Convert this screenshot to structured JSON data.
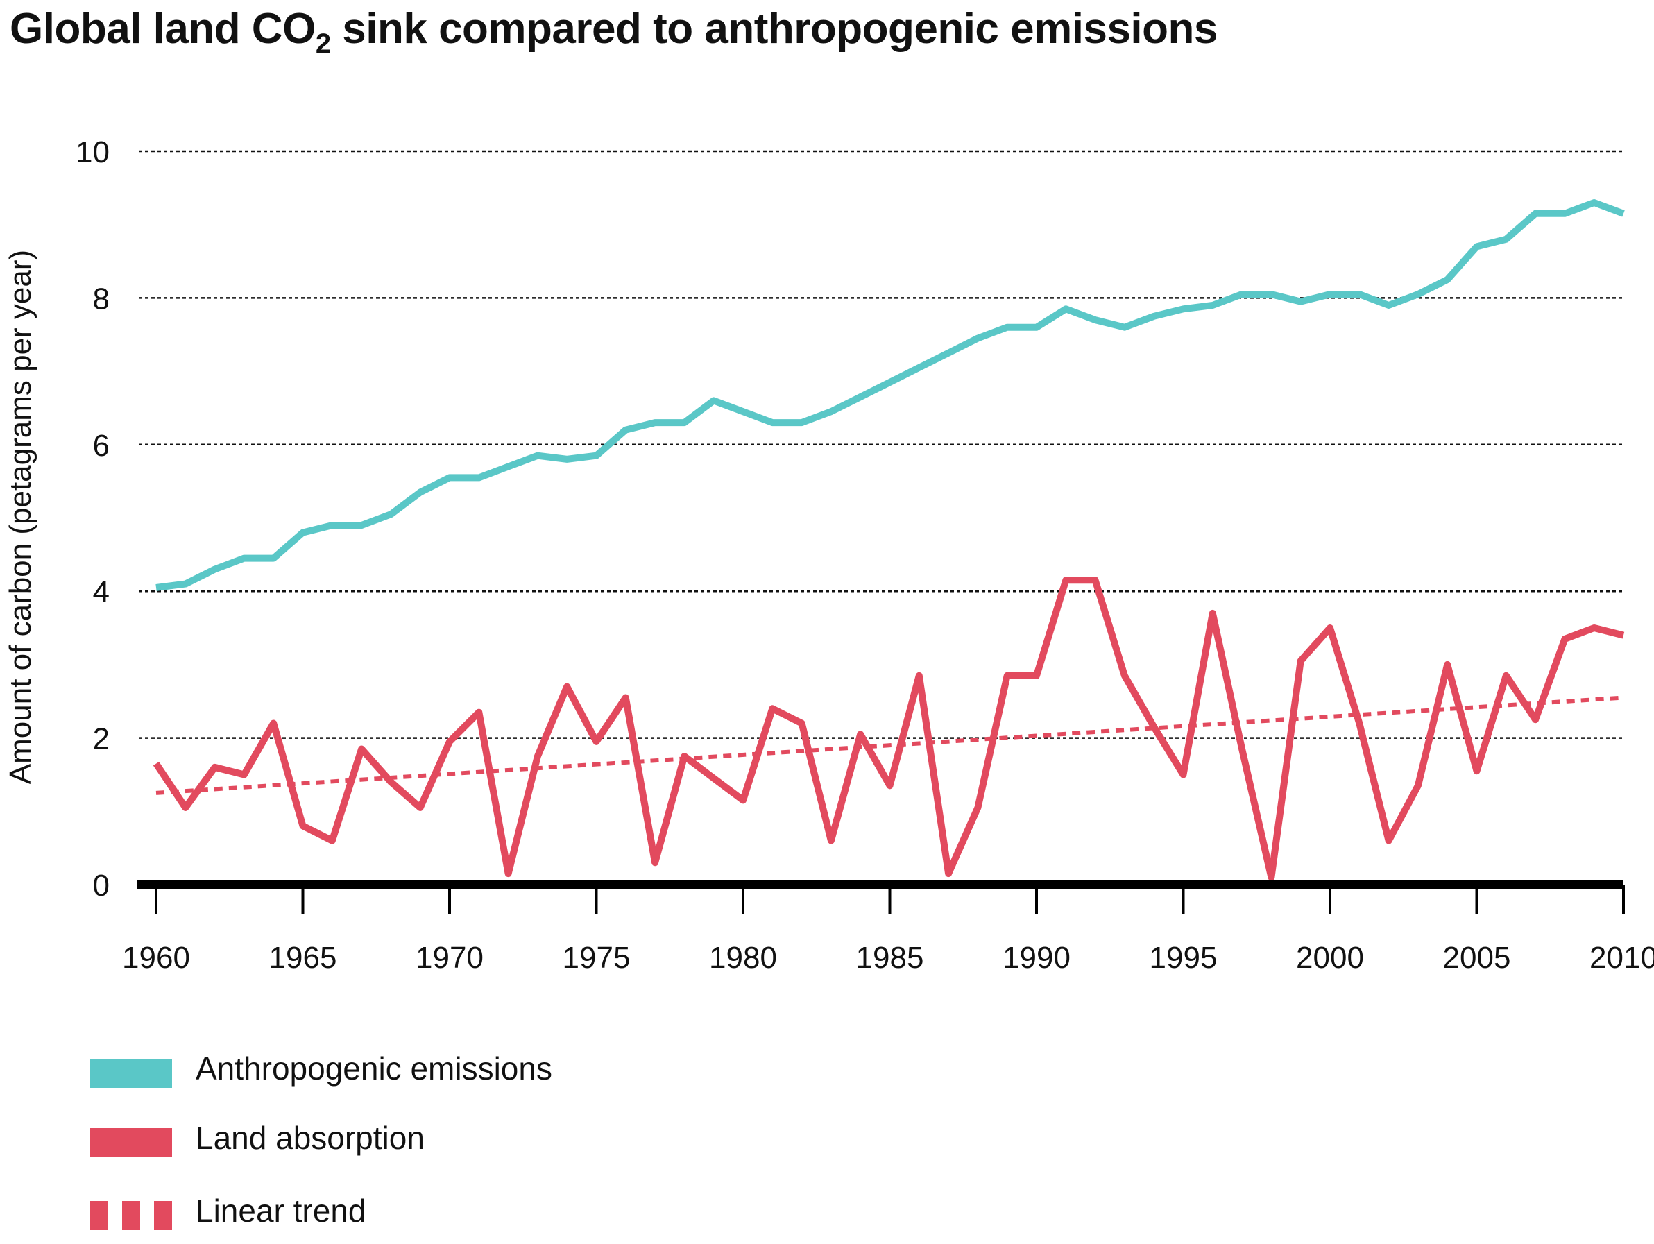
{
  "title": {
    "prefix": "Global land CO",
    "subscript": "2",
    "suffix": " sink compared to anthropogenic emissions"
  },
  "colors": {
    "emissions": "#5ac7c7",
    "absorption": "#e24a5e",
    "trend": "#e24a5e",
    "gridline": "#111111",
    "axis": "#000000"
  },
  "legend": [
    {
      "label": "Anthropogenic emissions",
      "color": "#5ac7c7",
      "style": "solid"
    },
    {
      "label": "Land absorption",
      "color": "#e24a5e",
      "style": "solid"
    },
    {
      "label": "Linear trend",
      "color": "#e24a5e",
      "style": "dashed"
    }
  ],
  "chart_data": {
    "type": "line",
    "title": "Global land CO2 sink compared to anthropogenic emissions",
    "xlabel": "",
    "ylabel": "Amount of carbon (petagrams per year)",
    "xlim": [
      1960,
      2010
    ],
    "ylim": [
      0,
      10
    ],
    "xticks": [
      1960,
      1965,
      1970,
      1975,
      1980,
      1985,
      1990,
      1995,
      2000,
      2005,
      2010
    ],
    "yticks": [
      0,
      2,
      4,
      6,
      8,
      10
    ],
    "grid": "horizontal dotted",
    "legend_position": "bottom-left",
    "series": [
      {
        "name": "Anthropogenic emissions",
        "style": "solid",
        "x": [
          1960,
          1961,
          1962,
          1963,
          1964,
          1965,
          1966,
          1967,
          1968,
          1969,
          1970,
          1971,
          1972,
          1973,
          1974,
          1975,
          1976,
          1977,
          1978,
          1979,
          1980,
          1981,
          1982,
          1983,
          1984,
          1985,
          1986,
          1987,
          1988,
          1989,
          1990,
          1991,
          1992,
          1993,
          1994,
          1995,
          1996,
          1997,
          1998,
          1999,
          2000,
          2001,
          2002,
          2003,
          2004,
          2005,
          2006,
          2007,
          2008,
          2009,
          2010
        ],
        "values": [
          4.05,
          4.1,
          4.3,
          4.45,
          4.45,
          4.8,
          4.9,
          4.9,
          5.05,
          5.35,
          5.55,
          5.55,
          5.7,
          5.85,
          5.8,
          5.85,
          6.2,
          6.3,
          6.3,
          6.6,
          6.45,
          6.3,
          6.3,
          6.45,
          6.65,
          6.85,
          7.05,
          7.25,
          7.45,
          7.6,
          7.6,
          7.85,
          7.7,
          7.6,
          7.75,
          7.85,
          7.9,
          8.05,
          8.05,
          7.95,
          8.05,
          8.05,
          7.9,
          8.05,
          8.25,
          8.7,
          8.8,
          9.15,
          9.15,
          9.3,
          9.15
        ]
      },
      {
        "name": "Land absorption",
        "style": "solid",
        "x": [
          1960,
          1961,
          1962,
          1963,
          1964,
          1965,
          1966,
          1967,
          1968,
          1969,
          1970,
          1971,
          1972,
          1973,
          1974,
          1975,
          1976,
          1977,
          1978,
          1979,
          1980,
          1981,
          1982,
          1983,
          1984,
          1985,
          1986,
          1987,
          1988,
          1989,
          1990,
          1991,
          1992,
          1993,
          1994,
          1995,
          1996,
          1997,
          1998,
          1999,
          2000,
          2001,
          2002,
          2003,
          2004,
          2005,
          2006,
          2007,
          2008,
          2009,
          2010
        ],
        "values": [
          1.65,
          1.05,
          1.6,
          1.5,
          2.2,
          0.8,
          0.6,
          1.85,
          1.4,
          1.05,
          1.95,
          2.35,
          0.15,
          1.75,
          2.7,
          1.95,
          2.55,
          0.3,
          1.75,
          1.45,
          1.15,
          2.4,
          2.2,
          0.6,
          2.05,
          1.35,
          2.85,
          0.15,
          1.05,
          2.85,
          2.85,
          4.15,
          4.15,
          2.85,
          2.15,
          1.5,
          3.7,
          1.85,
          0.1,
          3.05,
          3.5,
          2.2,
          0.6,
          1.35,
          3.0,
          1.55,
          2.85,
          2.25,
          3.35,
          3.5,
          3.4
        ]
      },
      {
        "name": "Linear trend",
        "style": "dashed",
        "x": [
          1960,
          2010
        ],
        "values": [
          1.25,
          2.55
        ]
      }
    ]
  }
}
